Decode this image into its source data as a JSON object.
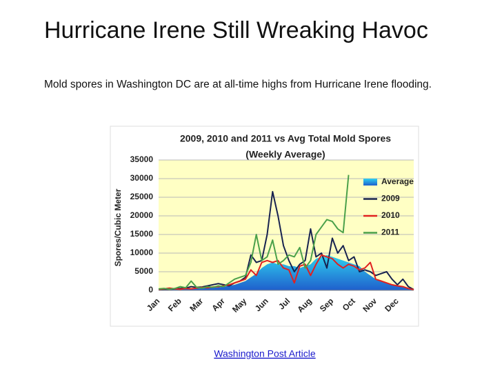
{
  "slide": {
    "title": "Hurricane Irene Still Wreaking Havoc",
    "subtitle": "Mold spores in Washington DC are at all-time highs from Hurricane Irene flooding.",
    "link": "Washington Post Article"
  },
  "chart_data": {
    "type": "line",
    "title": "2009, 2010 and 2011 vs Avg Total Mold Spores",
    "subtitle": "(Weekly Average)",
    "y_label": "Spores/Cubic Meter",
    "categories": [
      "Jan",
      null,
      null,
      null,
      "Feb",
      null,
      null,
      null,
      "Mar",
      null,
      null,
      null,
      "Apr",
      null,
      null,
      null,
      "May",
      null,
      null,
      null,
      "Jun",
      null,
      null,
      null,
      "Jul",
      null,
      null,
      null,
      "Aug",
      null,
      null,
      null,
      "Sep",
      null,
      null,
      null,
      "Oct",
      null,
      null,
      null,
      "Nov",
      null,
      null,
      null,
      "Dec",
      null,
      null,
      null
    ],
    "ylim": [
      0,
      35000
    ],
    "yticks": [
      0,
      5000,
      10000,
      15000,
      20000,
      25000,
      30000,
      35000
    ],
    "grid": true,
    "legend": "right",
    "series": [
      {
        "name": "Average",
        "type": "area",
        "color": "#1f8fd6",
        "values": [
          200,
          200,
          300,
          300,
          300,
          400,
          400,
          500,
          500,
          600,
          700,
          800,
          1000,
          1200,
          1500,
          2000,
          2500,
          3500,
          4500,
          6000,
          7000,
          7500,
          7000,
          7000,
          6500,
          6500,
          6000,
          6500,
          7000,
          8500,
          9000,
          9500,
          9000,
          8500,
          8000,
          7500,
          7000,
          6500,
          5000,
          4000,
          3000,
          2500,
          2000,
          1500,
          1200,
          800,
          500,
          200
        ]
      },
      {
        "name": "2009",
        "color": "#17224f",
        "values": [
          200,
          300,
          300,
          400,
          500,
          600,
          1000,
          800,
          900,
          1200,
          1500,
          1800,
          1500,
          1200,
          2000,
          2500,
          3500,
          9500,
          7500,
          8000,
          15000,
          26500,
          20000,
          12000,
          8000,
          5000,
          7000,
          8000,
          16500,
          9000,
          10000,
          6000,
          14000,
          10000,
          12000,
          8000,
          9000,
          5000,
          5500,
          5000,
          4000,
          4500,
          5000,
          3000,
          1500,
          3000,
          1000,
          200
        ]
      },
      {
        "name": "2010",
        "color": "#e02020",
        "values": [
          300,
          400,
          600,
          400,
          300,
          500,
          400,
          600,
          800,
          700,
          900,
          1000,
          1200,
          1500,
          2000,
          2500,
          3000,
          5500,
          4000,
          7500,
          8000,
          7500,
          8000,
          6000,
          5500,
          2000,
          6500,
          7000,
          4000,
          7000,
          9500,
          9000,
          8500,
          7000,
          6000,
          7000,
          6500,
          5500,
          6000,
          7500,
          3000,
          2500,
          2000,
          1500,
          1200,
          1000,
          500,
          200
        ]
      },
      {
        "name": "2011",
        "color": "#4aa04a",
        "values": [
          400,
          500,
          300,
          500,
          1000,
          700,
          2500,
          800,
          600,
          1000,
          800,
          1200,
          1000,
          2000,
          3000,
          3500,
          4000,
          7500,
          15000,
          8000,
          9000,
          13500,
          7000,
          8000,
          9500,
          9000,
          11500,
          6000,
          8000,
          15000,
          17000,
          19000,
          18500,
          16500,
          15500,
          31000,
          null,
          null,
          null,
          null,
          null,
          null,
          null,
          null,
          null,
          null,
          null,
          null
        ]
      }
    ]
  }
}
